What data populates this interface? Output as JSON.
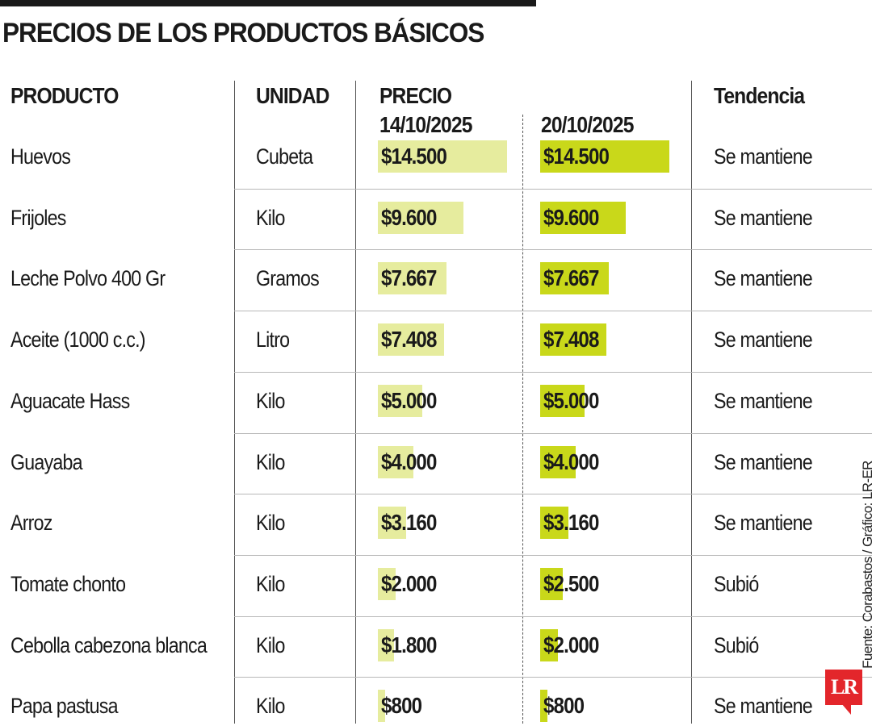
{
  "title": "PRECIOS DE LOS PRODUCTOS BÁSICOS",
  "headers": {
    "product": "PRODUCTO",
    "unit": "UNIDAD",
    "price": "PRECIO",
    "date1": "14/10/2025",
    "date2": "20/10/2025",
    "trend": "Tendencia"
  },
  "source": "Fuente: Corabastos / Gráfico: LR-ER",
  "logo": "LR",
  "colors": {
    "bar_date1": "#e6ec9e",
    "bar_date2": "#c9d81a",
    "divider": "#555555",
    "row_line": "#b8b8b8",
    "logo_red": "#e3262b"
  },
  "chart_data": {
    "type": "table",
    "title": "PRECIOS DE LOS PRODUCTOS BÁSICOS",
    "columns": [
      "PRODUCTO",
      "UNIDAD",
      "PRECIO 14/10/2025",
      "PRECIO 20/10/2025",
      "Tendencia"
    ],
    "bar_scale_max": 14500,
    "rows": [
      {
        "product": "Huevos",
        "unit": "Cubeta",
        "price1": 14500,
        "price1_label": "$14.500",
        "price2": 14500,
        "price2_label": "$14.500",
        "trend": "Se mantiene"
      },
      {
        "product": "Frijoles",
        "unit": "Kilo",
        "price1": 9600,
        "price1_label": "$9.600",
        "price2": 9600,
        "price2_label": "$9.600",
        "trend": "Se mantiene"
      },
      {
        "product": "Leche Polvo 400 Gr",
        "unit": "Gramos",
        "price1": 7667,
        "price1_label": "$7.667",
        "price2": 7667,
        "price2_label": "$7.667",
        "trend": "Se mantiene"
      },
      {
        "product": "Aceite (1000 c.c.)",
        "unit": "Litro",
        "price1": 7408,
        "price1_label": "$7.408",
        "price2": 7408,
        "price2_label": "$7.408",
        "trend": "Se mantiene"
      },
      {
        "product": "Aguacate Hass",
        "unit": "Kilo",
        "price1": 5000,
        "price1_label": "$5.000",
        "price2": 5000,
        "price2_label": "$5.000",
        "trend": "Se mantiene"
      },
      {
        "product": "Guayaba",
        "unit": "Kilo",
        "price1": 4000,
        "price1_label": "$4.000",
        "price2": 4000,
        "price2_label": "$4.000",
        "trend": "Se mantiene"
      },
      {
        "product": "Arroz",
        "unit": "Kilo",
        "price1": 3160,
        "price1_label": "$3.160",
        "price2": 3160,
        "price2_label": "$3.160",
        "trend": "Se mantiene"
      },
      {
        "product": "Tomate chonto",
        "unit": "Kilo",
        "price1": 2000,
        "price1_label": "$2.000",
        "price2": 2500,
        "price2_label": "$2.500",
        "trend": "Subió"
      },
      {
        "product": "Cebolla cabezona blanca",
        "unit": "Kilo",
        "price1": 1800,
        "price1_label": "$1.800",
        "price2": 2000,
        "price2_label": "$2.000",
        "trend": "Subió"
      },
      {
        "product": "Papa pastusa",
        "unit": "Kilo",
        "price1": 800,
        "price1_label": "$800",
        "price2": 800,
        "price2_label": "$800",
        "trend": "Se mantiene"
      }
    ]
  }
}
